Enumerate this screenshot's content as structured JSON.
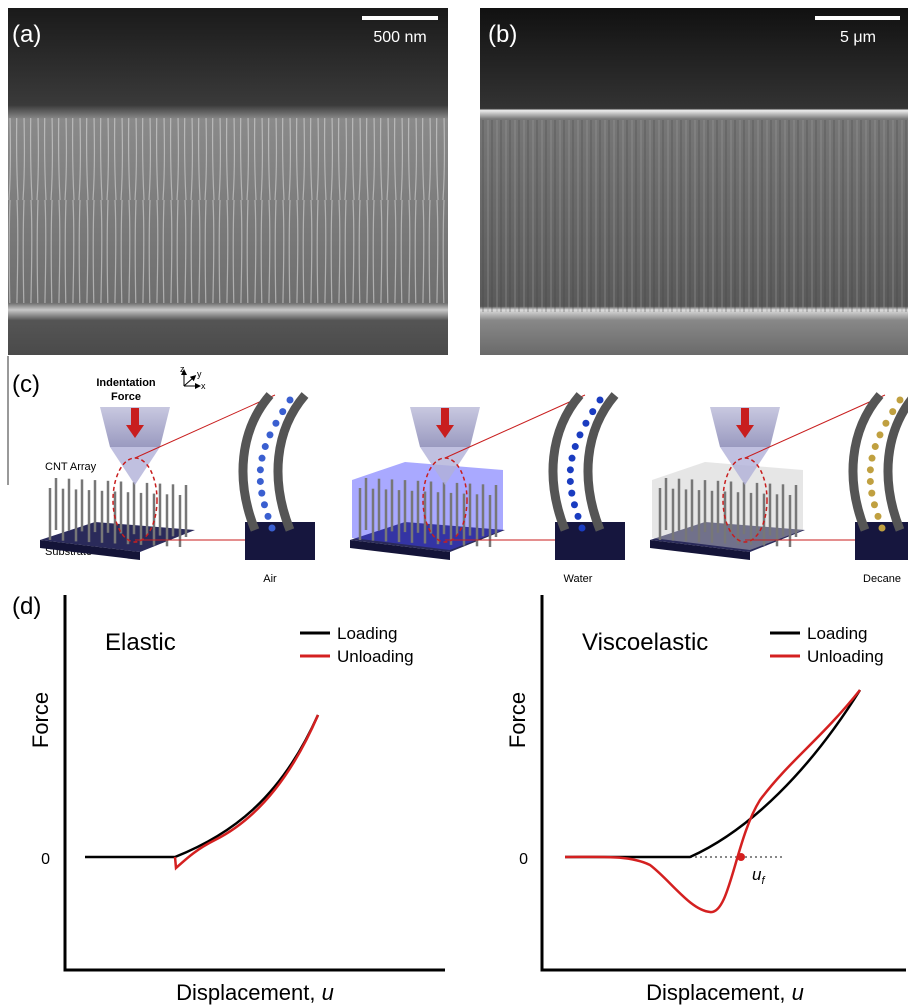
{
  "panels": [
    {
      "label": "(a)",
      "scale_bar": "500 nm"
    },
    {
      "label": "(b)",
      "scale_bar": "5 μm"
    },
    {
      "label": "(c)",
      "force_label": [
        "Indentation",
        "Force"
      ],
      "axes": [
        "z",
        "y",
        "x"
      ],
      "array": "CNT Array",
      "substrate": "Substrate",
      "media": [
        "Air",
        "Water",
        "Decane"
      ]
    },
    {
      "label": "(d)",
      "plots": [
        {
          "title": "Elastic",
          "legend": [
            "Loading",
            "Unloading"
          ],
          "ylabel": "Force",
          "yzero": "0",
          "xlabel": "Displacement, ",
          "xvar": "u"
        },
        {
          "title": "Viscoelastic",
          "legend": [
            "Loading",
            "Unloading"
          ],
          "ylabel": "Force",
          "yzero": "0",
          "xlabel": "Displacement, ",
          "xvar": "u",
          "marker": "u",
          "marker_sub": "f"
        }
      ]
    }
  ]
}
